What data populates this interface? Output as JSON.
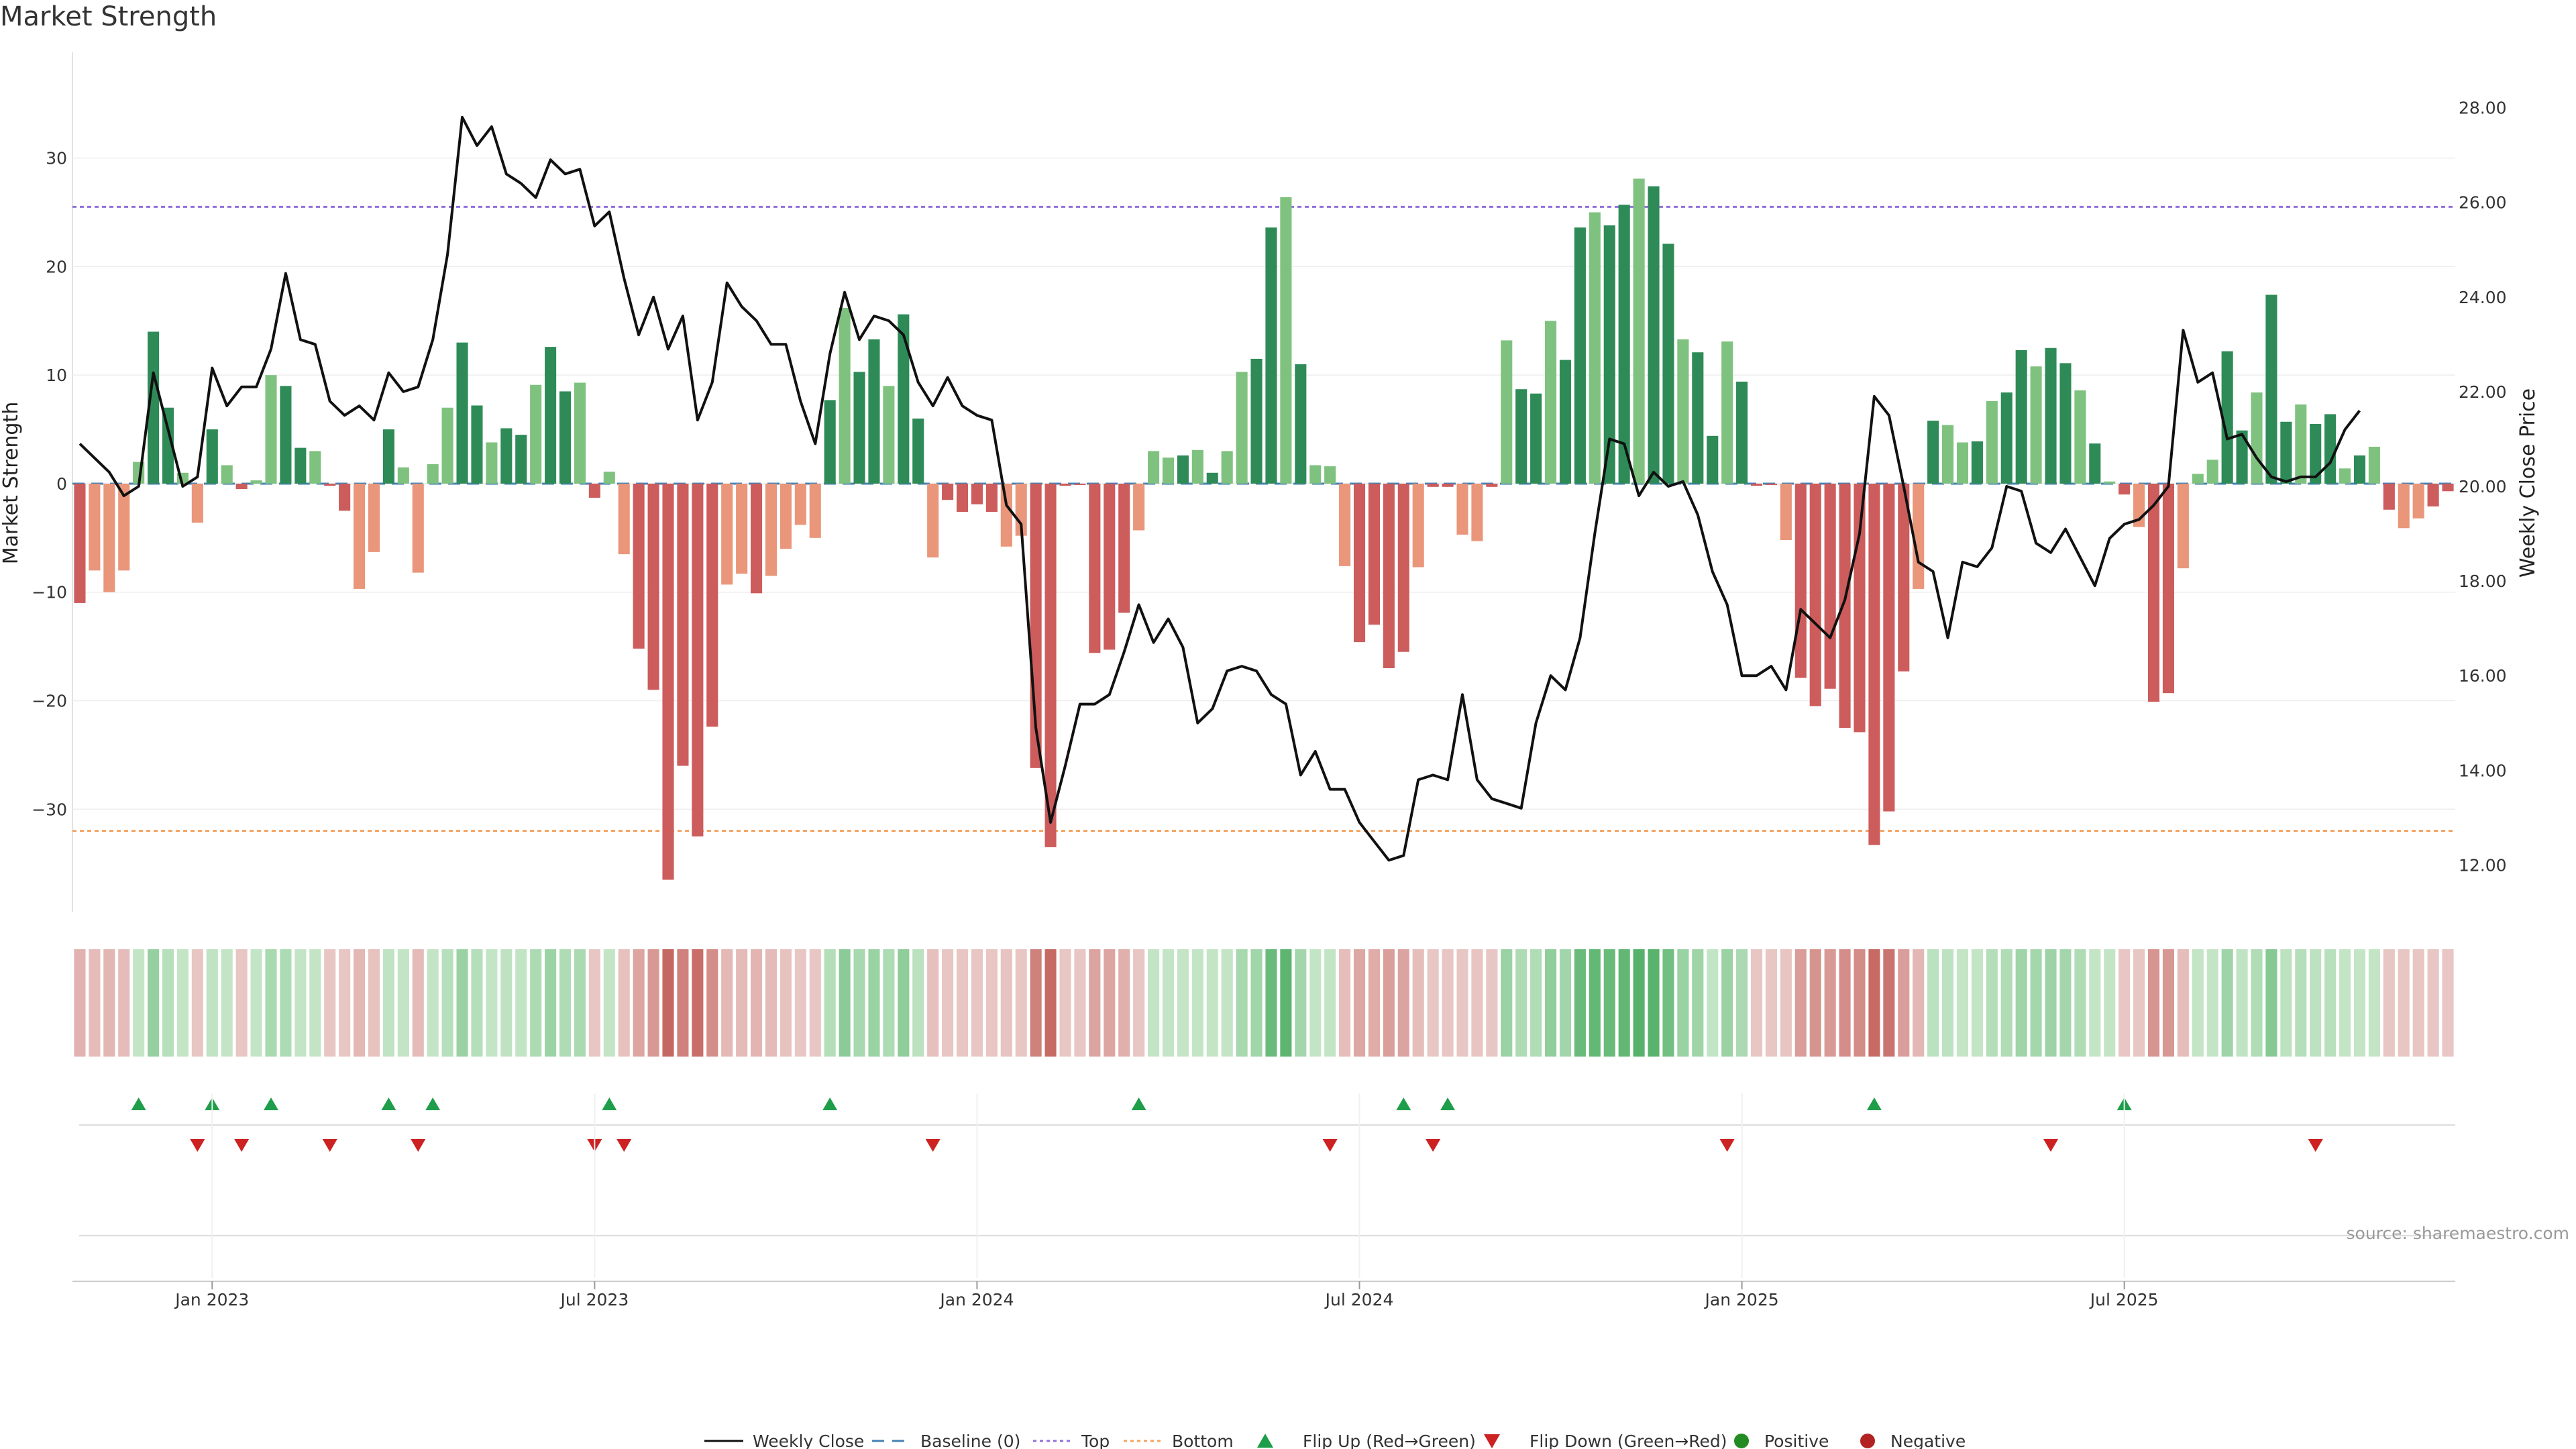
{
  "chart_data": {
    "type": "bar",
    "title": "Market Strength",
    "ylabel": "Market Strength",
    "y2label": "Weekly Close Price",
    "ylim": [
      -39.5,
      39
    ],
    "y2lim": [
      11,
      29
    ],
    "yticks": [
      -30,
      -20,
      -10,
      0,
      10,
      20,
      30
    ],
    "ytick_labels": [
      "−30",
      "−20",
      "−10",
      "0",
      "10",
      "20",
      "30"
    ],
    "y2ticks": [
      12,
      14,
      16,
      18,
      20,
      22,
      24,
      26,
      28
    ],
    "y2tick_labels": [
      "12.00",
      "14.00",
      "16.00",
      "18.00",
      "20.00",
      "22.00",
      "24.00",
      "26.00",
      "28.00"
    ],
    "xticks": [
      {
        "index": 9,
        "label": "Jan 2023"
      },
      {
        "index": 35,
        "label": "Jul 2023"
      },
      {
        "index": 61,
        "label": "Jan 2024"
      },
      {
        "index": 87,
        "label": "Jul 2024"
      },
      {
        "index": 113,
        "label": "Jan 2025"
      },
      {
        "index": 139,
        "label": "Jul 2025"
      }
    ],
    "top_level": 25.5,
    "bottom_level": -32,
    "baseline": 0,
    "strength": [
      -11,
      -8,
      -10,
      -8,
      2,
      14,
      7,
      1,
      -3.6,
      5,
      1.7,
      -0.5,
      0.3,
      10,
      9,
      3.3,
      3,
      -0.2,
      -2.5,
      -9.7,
      -6.3,
      5,
      1.5,
      -8.2,
      1.8,
      7,
      13,
      7.2,
      3.8,
      5.1,
      4.5,
      9.1,
      12.6,
      8.5,
      9.3,
      -1.3,
      1.1,
      -6.5,
      -15.2,
      -19,
      -36.5,
      -26,
      -32.5,
      -22.4,
      -9.3,
      -8.3,
      -10.1,
      -8.5,
      -6,
      -3.8,
      -5,
      7.7,
      16.2,
      10.3,
      13.3,
      9,
      15.6,
      6,
      -6.8,
      -1.5,
      -2.6,
      -1.9,
      -2.6,
      -5.8,
      -4.8,
      -26.2,
      -33.5,
      -0.2,
      -0.1,
      -15.6,
      -15.3,
      -11.9,
      -4.3,
      3,
      2.4,
      2.6,
      3.1,
      1,
      3,
      10.3,
      11.5,
      23.6,
      26.4,
      11,
      1.7,
      1.6,
      -7.6,
      -14.6,
      -13,
      -17,
      -15.5,
      -7.7,
      -0.3,
      -0.3,
      -4.7,
      -5.3,
      -0.3,
      13.2,
      8.7,
      8.3,
      15,
      11.4,
      23.6,
      25,
      23.8,
      25.7,
      28.1,
      27.4,
      22.1,
      13.3,
      12.1,
      4.4,
      13.1,
      9.4,
      -0.2,
      -0.1,
      -5.2,
      -17.9,
      -20.5,
      -18.9,
      -22.5,
      -22.9,
      -33.3,
      -30.2,
      -17.3,
      -9.7,
      5.8,
      5.4,
      3.8,
      3.9,
      7.6,
      8.4,
      12.3,
      10.8,
      12.5,
      11.1,
      8.6,
      3.7,
      0.2,
      -1,
      -4,
      -20.1,
      -19.3,
      -7.8,
      0.9,
      2.2,
      12.2,
      4.9,
      8.4,
      17.4,
      5.7,
      7.3,
      5.5,
      6.4,
      1.4,
      2.6,
      3.4,
      -2.4,
      -4.1,
      -3.2,
      -2.1,
      -0.7
    ],
    "weekly_close": [
      20.9,
      20.6,
      20.3,
      19.8,
      20.0,
      22.4,
      21.2,
      20.0,
      20.2,
      22.5,
      21.7,
      22.1,
      22.1,
      22.9,
      24.5,
      23.1,
      23.0,
      21.8,
      21.5,
      21.7,
      21.4,
      22.4,
      22.0,
      22.1,
      23.1,
      24.9,
      27.8,
      27.2,
      27.6,
      26.6,
      26.4,
      26.1,
      26.9,
      26.6,
      26.7,
      25.5,
      25.8,
      24.4,
      23.2,
      24.0,
      22.9,
      23.6,
      21.4,
      22.2,
      24.3,
      23.8,
      23.5,
      23.0,
      23.0,
      21.8,
      20.9,
      22.8,
      24.1,
      23.1,
      23.6,
      23.5,
      23.2,
      22.2,
      21.7,
      22.3,
      21.7,
      21.5,
      21.4,
      19.6,
      19.2,
      14.9,
      12.9,
      14.1,
      15.4,
      15.4,
      15.6,
      16.5,
      17.5,
      16.7,
      17.2,
      16.6,
      15.0,
      15.3,
      16.1,
      16.2,
      16.1,
      15.6,
      15.4,
      13.9,
      14.4,
      13.6,
      13.6,
      12.9,
      12.5,
      12.1,
      12.2,
      13.8,
      13.9,
      13.8,
      15.6,
      13.8,
      13.4,
      13.3,
      13.2,
      15.0,
      16.0,
      15.7,
      16.8,
      19.0,
      21.0,
      20.9,
      19.8,
      20.3,
      20.0,
      20.1,
      19.4,
      18.2,
      17.5,
      16.0,
      16.0,
      16.2,
      15.7,
      17.4,
      17.1,
      16.8,
      17.6,
      19.0,
      21.9,
      21.5,
      20.0,
      18.4,
      18.2,
      16.8,
      18.4,
      18.3,
      18.7,
      20.0,
      19.9,
      18.8,
      18.6,
      19.1,
      18.5,
      17.9,
      18.9,
      19.2,
      19.3,
      19.6,
      20.0,
      23.3,
      22.2,
      22.4,
      21.0,
      21.1,
      20.6,
      20.2,
      20.1,
      20.2,
      20.2,
      20.5,
      21.2,
      21.6
    ],
    "flip_up_indices": [
      4,
      9,
      13,
      21,
      24,
      36,
      51,
      72,
      90,
      93,
      122,
      139
    ],
    "flip_down_indices": [
      8,
      11,
      17,
      23,
      35,
      37,
      58,
      85,
      92,
      112,
      134,
      152
    ],
    "legend": [
      "Weekly Close",
      "Baseline (0)",
      "Top",
      "Bottom",
      "Flip Up (Red→Green)",
      "Flip Down (Green→Red)",
      "Positive",
      "Negative"
    ]
  },
  "colors": {
    "pos_strong": "#2e8b57",
    "pos_light": "#7fc27f",
    "neg_strong": "#cd5c5c",
    "neg_light": "#e9967a",
    "top_line": "#9370db",
    "bottom_line": "#f4a460",
    "baseline": "#4682b4",
    "close_line": "#111111",
    "flip_up": "#1e9e4a",
    "flip_down": "#cc2222",
    "positive_dot": "#228b22",
    "negative_dot": "#b22222"
  },
  "source": "source: sharemaestro.com"
}
